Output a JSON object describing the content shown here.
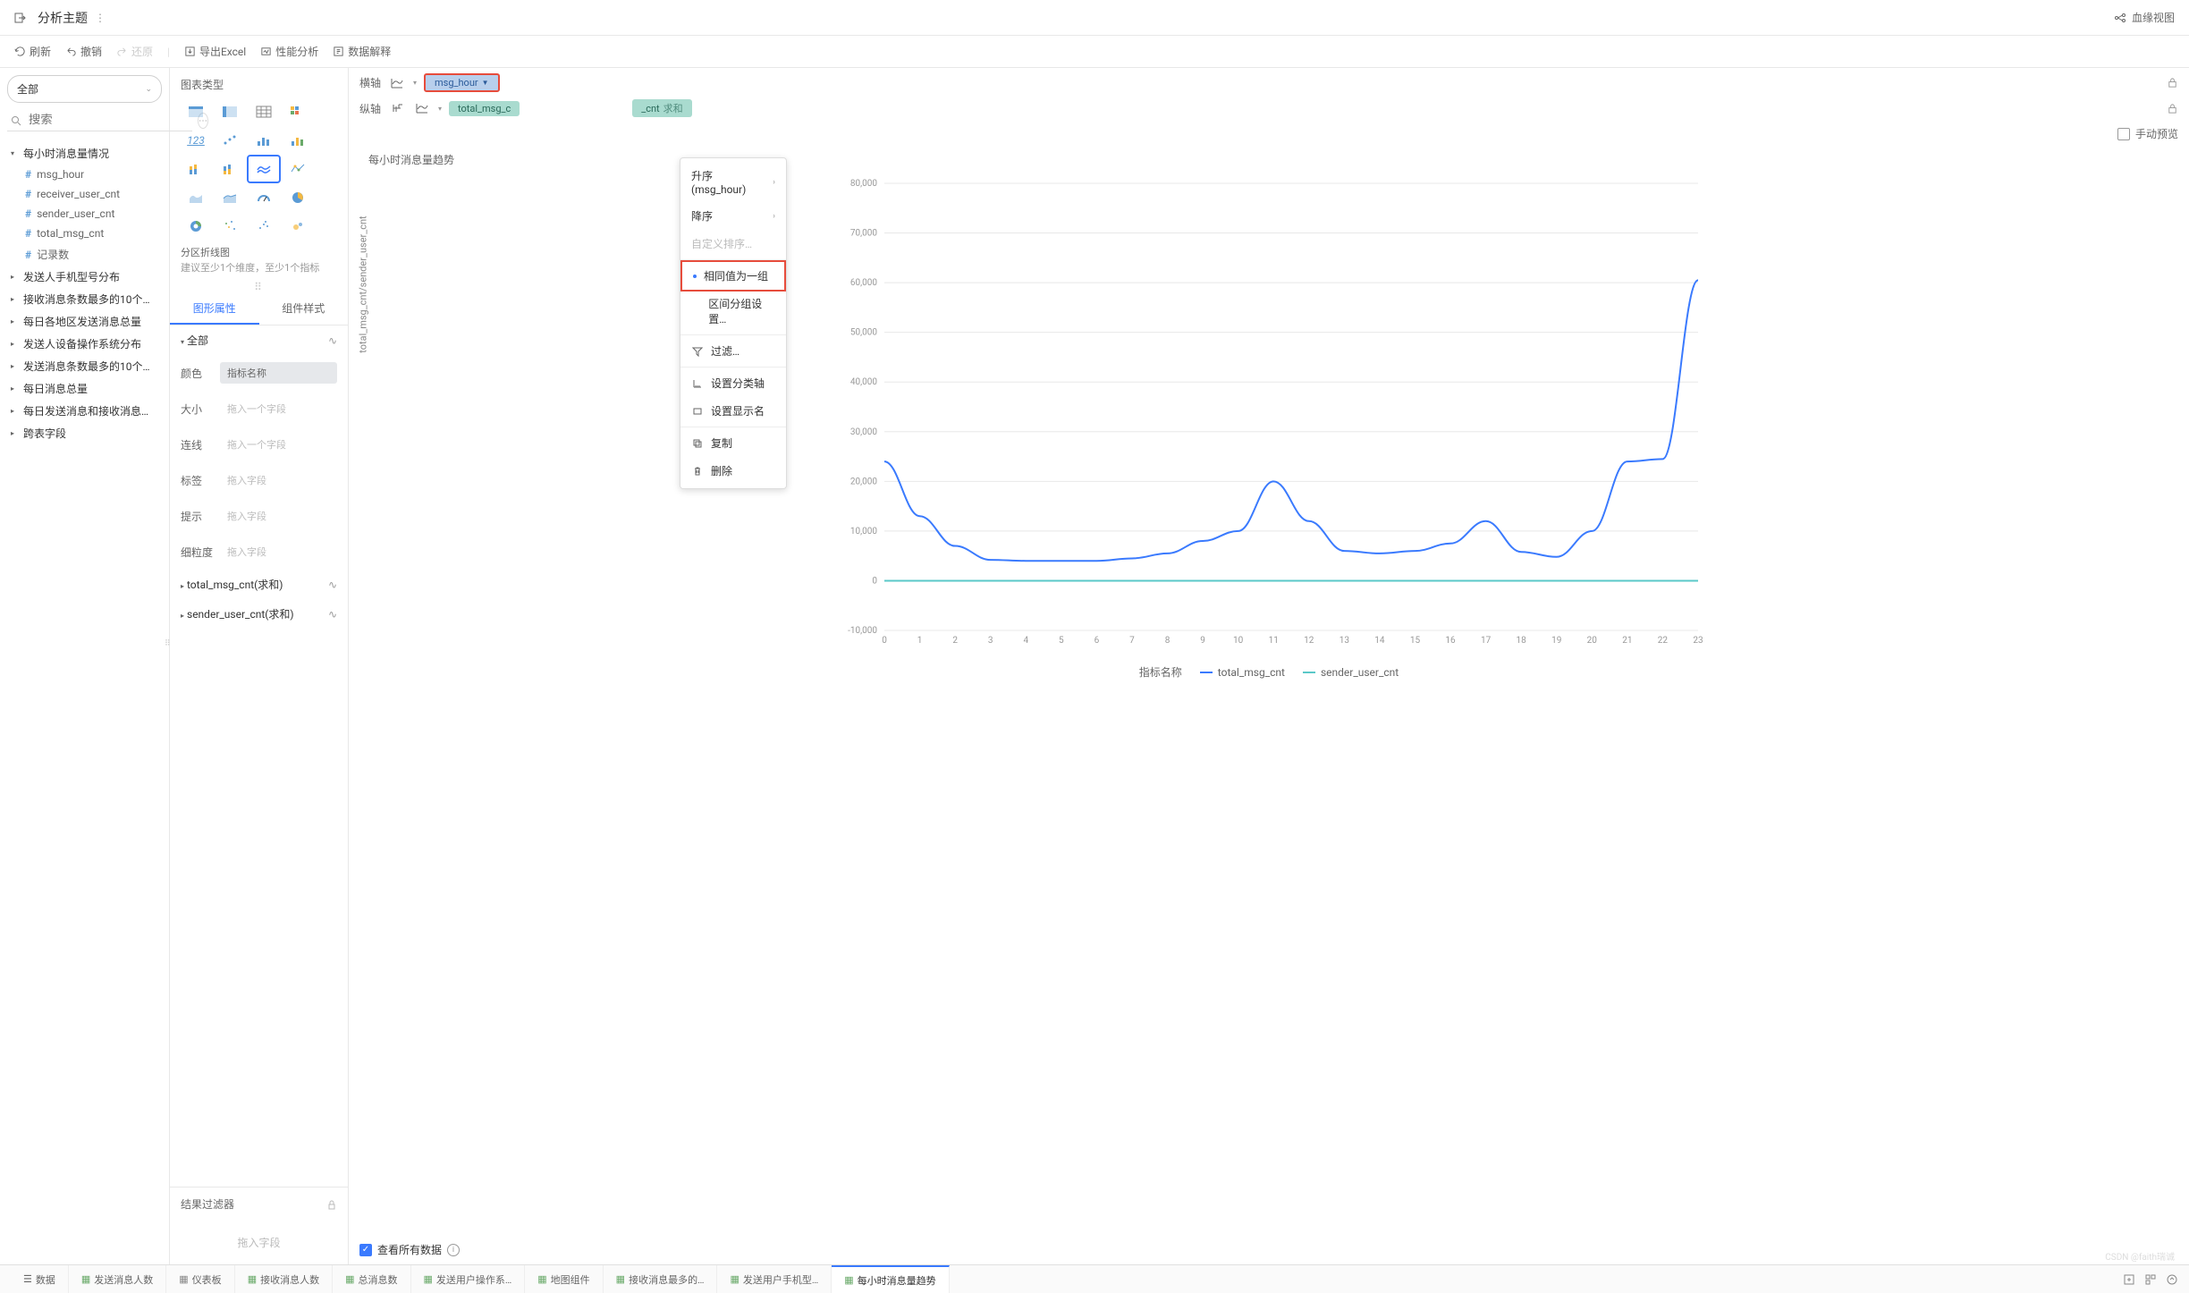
{
  "header": {
    "title": "分析主题",
    "lineage": "血缘视图"
  },
  "toolbar": {
    "refresh": "刷新",
    "undo": "撤销",
    "redo": "还原",
    "export": "导出Excel",
    "perf": "性能分析",
    "explain": "数据解释"
  },
  "leftSidebar": {
    "filterAll": "全部",
    "searchPlaceholder": "搜索",
    "groups": [
      {
        "label": "每小时消息量情况",
        "expanded": true,
        "items": [
          "msg_hour",
          "receiver_user_cnt",
          "sender_user_cnt",
          "total_msg_cnt",
          "记录数"
        ]
      },
      {
        "label": "发送人手机型号分布"
      },
      {
        "label": "接收消息条数最多的10个…"
      },
      {
        "label": "每日各地区发送消息总量"
      },
      {
        "label": "发送人设备操作系统分布"
      },
      {
        "label": "发送消息条数最多的10个…"
      },
      {
        "label": "每日消息总量"
      },
      {
        "label": "每日发送消息和接收消息…"
      },
      {
        "label": "跨表字段"
      }
    ]
  },
  "middlePanel": {
    "chartTypeTitle": "图表类型",
    "chartTypeName": "分区折线图",
    "chartTypeHint": "建议至少1个维度，至少1个指标",
    "tabs": {
      "attr": "图形属性",
      "style": "组件样式"
    },
    "allGroup": "全部",
    "attrs": {
      "color": {
        "label": "颜色",
        "value": "指标名称"
      },
      "size": {
        "label": "大小",
        "placeholder": "拖入一个字段"
      },
      "line": {
        "label": "连线",
        "placeholder": "拖入一个字段"
      },
      "tag": {
        "label": "标签",
        "placeholder": "拖入字段"
      },
      "tip": {
        "label": "提示",
        "placeholder": "拖入字段"
      },
      "grain": {
        "label": "细粒度",
        "placeholder": "拖入字段"
      }
    },
    "seriesGroups": [
      "total_msg_cnt(求和)",
      "sender_user_cnt(求和)"
    ],
    "resultFilter": "结果过滤器",
    "resultFilterPlaceholder": "拖入字段"
  },
  "axisConfig": {
    "xLabel": "横轴",
    "yLabel": "纵轴",
    "xPill": "msg_hour",
    "yPill1": "total_msg_c",
    "yPill2": {
      "name": "_cnt",
      "agg": "求和"
    },
    "manualPreview": "手动预览"
  },
  "contextMenu": {
    "sortAsc": "升序(msg_hour)",
    "sortDesc": "降序",
    "customSort": "自定义排序…",
    "sameGroup": "相同值为一组",
    "rangeGroup": "区间分组设置…",
    "filter": "过滤…",
    "setAxis": "设置分类轴",
    "setDisplay": "设置显示名",
    "copy": "复制",
    "delete": "删除"
  },
  "chart": {
    "title": "每小时消息量趋势",
    "yAxisTitle": "total_msg_cnt/sender_user_cnt",
    "legendLabel": "指标名称",
    "legendSeries": [
      "total_msg_cnt",
      "sender_user_cnt"
    ],
    "viewAll": "查看所有数据",
    "ylim": [
      -10000,
      80000
    ],
    "yticks": [
      -10000,
      0,
      10000,
      20000,
      30000,
      40000,
      50000,
      60000,
      70000,
      80000
    ],
    "ytickLabels": [
      "-10,000",
      "0",
      "10,000",
      "20,000",
      "30,000",
      "40,000",
      "50,000",
      "60,000",
      "70,000",
      "80,000"
    ],
    "xticks": [
      0,
      1,
      2,
      3,
      4,
      5,
      6,
      7,
      8,
      9,
      10,
      11,
      12,
      13,
      14,
      15,
      16,
      17,
      18,
      19,
      20,
      21,
      22,
      23
    ],
    "series1": {
      "name": "total_msg_cnt",
      "color": "#3a7afe",
      "values": [
        24000,
        13000,
        7000,
        4200,
        4000,
        4000,
        4000,
        4500,
        5500,
        8000,
        10000,
        20000,
        12000,
        6000,
        5500,
        6000,
        7500,
        12000,
        5800,
        4800,
        10000,
        24000,
        24500,
        60500
      ]
    },
    "series2": {
      "name": "sender_user_cnt",
      "color": "#5ac8c8",
      "values": [
        0,
        0,
        0,
        0,
        0,
        0,
        0,
        0,
        0,
        0,
        0,
        0,
        0,
        0,
        0,
        0,
        0,
        0,
        0,
        0,
        0,
        0,
        0,
        0
      ]
    },
    "grid_color": "#e8e8e8",
    "axis_fontsize": 10,
    "axis_color": "#999"
  },
  "bottomTabs": {
    "data": "数据",
    "tabs": [
      "发送消息人数",
      "仪表板",
      "接收消息人数",
      "总消息数",
      "发送用户操作系…",
      "地图组件",
      "接收消息最多的…",
      "发送用户手机型…",
      "每小时消息量趋势"
    ]
  },
  "watermark": "CSDN @faith瑞诚"
}
